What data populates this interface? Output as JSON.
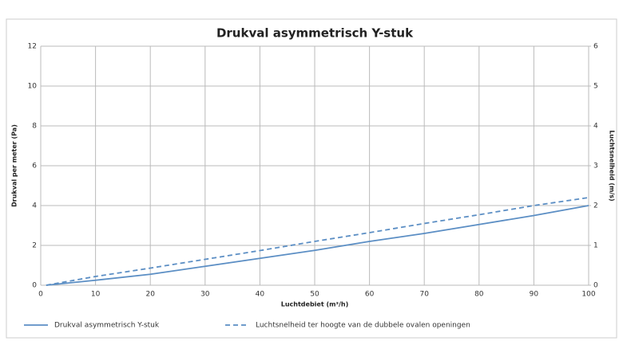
{
  "chart_data": {
    "type": "line",
    "title": "Drukval asymmetrisch Y-stuk",
    "x_label": "Luchtdebiet (m³/h)",
    "y_label": "Drukval per meter (Pa)",
    "y2_label": "Luchtsnelheid (m/s)",
    "x": [
      1,
      10,
      20,
      30,
      40,
      50,
      60,
      70,
      80,
      90,
      100
    ],
    "xlim": [
      0,
      100
    ],
    "xticks": [
      0,
      10,
      20,
      30,
      40,
      50,
      60,
      70,
      80,
      90,
      100
    ],
    "ylim": [
      0,
      12
    ],
    "yticks": [
      0,
      2,
      4,
      6,
      8,
      10,
      12
    ],
    "y2lim": [
      0,
      6
    ],
    "y2ticks": [
      0,
      1,
      2,
      3,
      4,
      5,
      6
    ],
    "grid": true,
    "series": [
      {
        "name": "Drukval asymmetrisch Y-stuk",
        "color": "#5b8ec4",
        "dash": false,
        "values": [
          0,
          0.25,
          0.55,
          0.95,
          1.35,
          1.75,
          2.2,
          2.6,
          3.05,
          3.5,
          4.0
        ]
      },
      {
        "name": "Luchtsnelheid ter hoogte van de dubbele ovalen openingen",
        "color": "#5b8ec4",
        "dash": true,
        "axis": "y2",
        "values": [
          0,
          0.22,
          0.43,
          0.65,
          0.87,
          1.1,
          1.32,
          1.55,
          1.77,
          2.0,
          2.2
        ]
      }
    ]
  }
}
